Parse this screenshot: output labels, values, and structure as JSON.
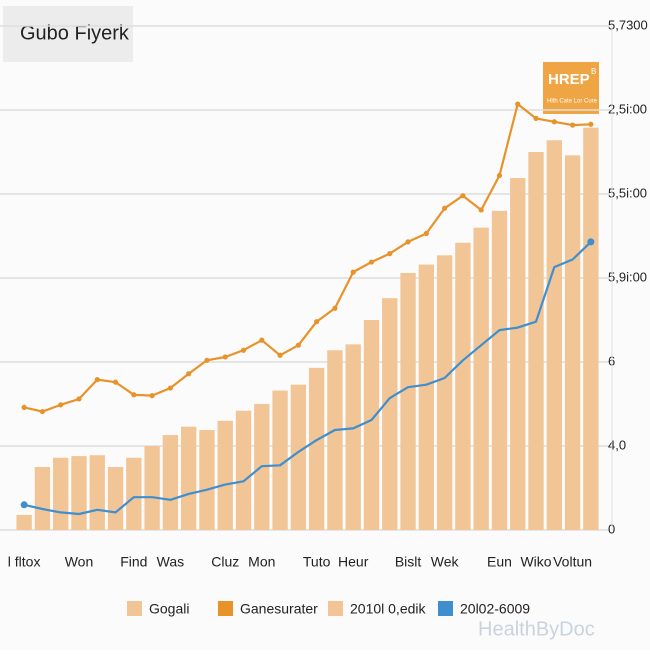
{
  "chart_data": {
    "type": "bar_line",
    "title": "Gubo Fiyerk",
    "badge": {
      "title": "HREP",
      "sup": "B",
      "subtitle": "Hlth Cate Lor Cure"
    },
    "watermark": "HealthByDoc",
    "categories": [
      "l fltox",
      null,
      null,
      "Won",
      null,
      null,
      "Find",
      null,
      "Was",
      null,
      null,
      "Cluz",
      null,
      "Mon",
      null,
      null,
      "Tuto",
      null,
      "Heur",
      null,
      null,
      "Bislt",
      null,
      "Wek",
      null,
      null,
      "Eun",
      null,
      "Wiko",
      null,
      "Voltun",
      null
    ],
    "series": [
      {
        "name": "Gogali",
        "kind": "bar",
        "color": "#f1c596",
        "values": [
          180,
          750,
          860,
          880,
          890,
          750,
          860,
          1000,
          1130,
          1230,
          1190,
          1300,
          1420,
          1500,
          1660,
          1730,
          1930,
          2140,
          2210,
          2500,
          2760,
          3060,
          3160,
          3270,
          3420,
          3600,
          3800,
          4190,
          4500,
          4640,
          4460,
          4790
        ]
      },
      {
        "name": "Ganesurater",
        "kind": "line",
        "color": "#e8922a",
        "markers": "all",
        "values": [
          1460,
          1410,
          1490,
          1560,
          1790,
          1760,
          1610,
          1600,
          1690,
          1860,
          2020,
          2060,
          2140,
          2260,
          2080,
          2200,
          2480,
          2640,
          3070,
          3190,
          3290,
          3430,
          3530,
          3830,
          3980,
          3810,
          4220,
          5070,
          4900,
          4860,
          4820,
          4830
        ]
      },
      {
        "name": "20l02-6009",
        "kind": "line",
        "color": "#3f8fcf",
        "markers": "ends",
        "values": [
          300,
          250,
          210,
          190,
          240,
          210,
          390,
          390,
          360,
          430,
          480,
          540,
          580,
          760,
          770,
          930,
          1070,
          1190,
          1210,
          1310,
          1570,
          1700,
          1730,
          1810,
          2020,
          2200,
          2380,
          2410,
          2480,
          3130,
          3220,
          3430
        ]
      }
    ],
    "extra_legend": [
      {
        "name": "2010l 0,edik",
        "color": "#f1c596"
      }
    ],
    "legend_order": [
      "Gogali",
      "Ganesurater",
      "2010l 0,edik",
      "20l02-6009"
    ],
    "ylim": [
      0,
      6000
    ],
    "yticks": [
      0,
      {
        "value": 1000,
        "label": "4,0"
      },
      {
        "value": 2000,
        "label": "6"
      },
      {
        "value": 3000,
        "label": "5,9i:00"
      },
      {
        "value": 4000,
        "label": "5,5i:00"
      },
      {
        "value": 5000,
        "label": "2,5i:00"
      },
      {
        "value": 6000,
        "label": "5,7300"
      }
    ],
    "grid": true
  }
}
